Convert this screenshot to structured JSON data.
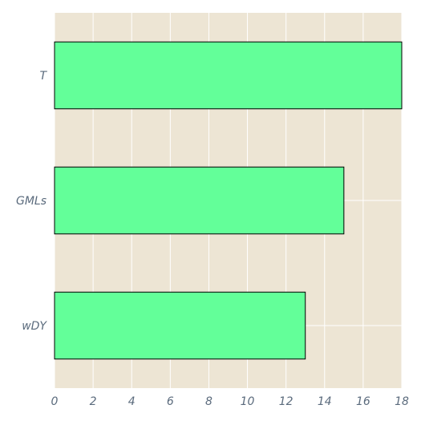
{
  "chart_data": {
    "type": "bar",
    "orientation": "horizontal",
    "categories": [
      "T",
      "GMLs",
      "wDY"
    ],
    "values": [
      18,
      15,
      13
    ],
    "title": "",
    "xlabel": "",
    "ylabel": "",
    "xlim": [
      0,
      18
    ],
    "xticks": [
      "0",
      "2",
      "4",
      "6",
      "8",
      "10",
      "12",
      "14",
      "16",
      "18"
    ],
    "grid": true,
    "legend": "none",
    "colors": {
      "bar_fill": "#63ff99",
      "bar_edge": "#000000",
      "plot_background": "#ede5d4",
      "grid": "#ffffff",
      "tick_text": "#5b6b7d"
    }
  }
}
